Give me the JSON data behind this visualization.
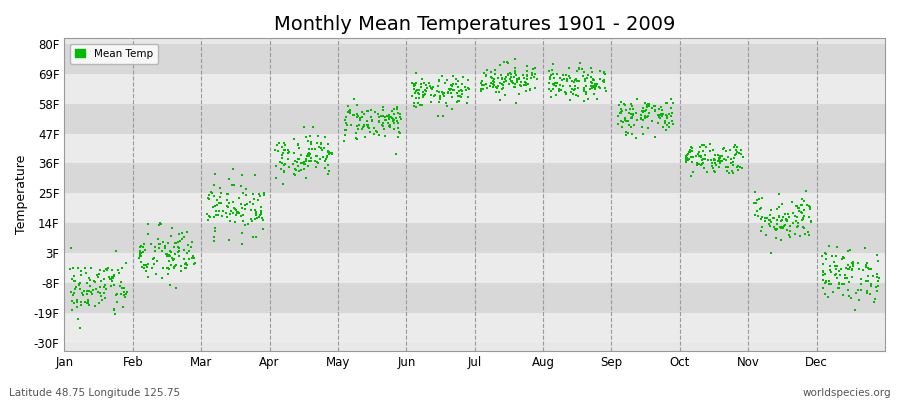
{
  "title": "Monthly Mean Temperatures 1901 - 2009",
  "ylabel": "Temperature",
  "xlabel_note": "Latitude 48.75 Longitude 125.75",
  "watermark": "worldspecies.org",
  "months": [
    "Jan",
    "Feb",
    "Mar",
    "Apr",
    "May",
    "Jun",
    "Jul",
    "Aug",
    "Sep",
    "Oct",
    "Nov",
    "Dec"
  ],
  "yticks": [
    -30,
    -19,
    -8,
    3,
    14,
    25,
    36,
    47,
    58,
    69,
    80
  ],
  "ylim": [
    -33,
    82
  ],
  "dot_color": "#00bb00",
  "dot_size": 2.5,
  "legend_color": "#00bb00",
  "title_fontsize": 14,
  "axis_fontsize": 9,
  "tick_fontsize": 8.5,
  "num_years": 109,
  "monthly_means_F": [
    -10.0,
    2.0,
    20.0,
    39.0,
    51.5,
    62.0,
    67.0,
    65.0,
    53.5,
    38.0,
    16.0,
    -5.0
  ],
  "monthly_stds_F": [
    5.5,
    5.5,
    5.0,
    4.0,
    3.5,
    3.0,
    3.0,
    3.0,
    3.5,
    3.0,
    4.5,
    5.0
  ],
  "band_light": "#ebebeb",
  "band_dark": "#d8d8d8",
  "bg_color": "#e8e8e8"
}
